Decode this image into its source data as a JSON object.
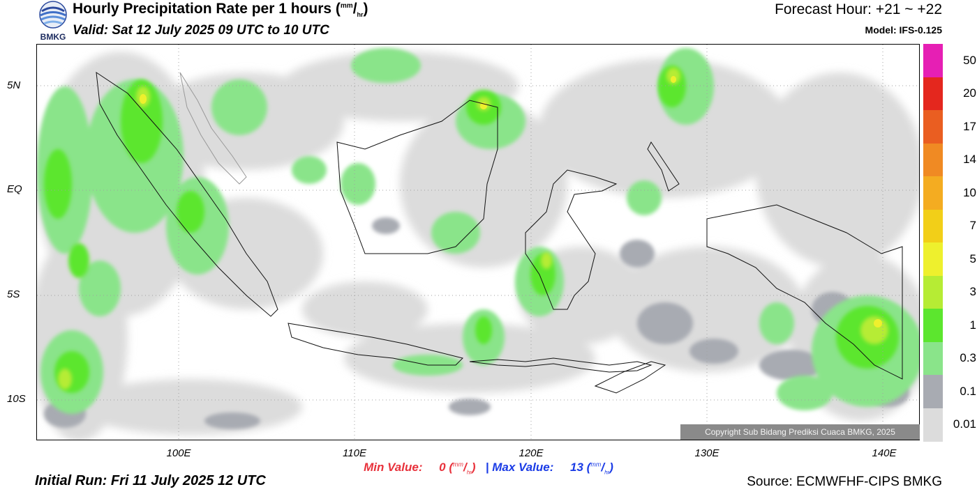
{
  "header": {
    "agency_logo_text": "BMKG",
    "title_main": "Hourly Precipitation Rate per 1 hours (",
    "title_unit_num": "mm",
    "title_unit_sep": "/",
    "title_unit_den": "hr",
    "title_close": ")",
    "valid": "Valid: Sat 12 July 2025 09 UTC to 10 UTC",
    "forecast_hour": "Forecast Hour: +21 ~ +22",
    "model": "Model: IFS-0.125"
  },
  "map": {
    "lat_labels": [
      "5N",
      "EQ",
      "5S",
      "10S"
    ],
    "lon_labels": [
      "100E",
      "110E",
      "120E",
      "130E",
      "140E"
    ],
    "copyright": "Copyright Sub Bidang Prediksi Cuaca BMKG, 2025"
  },
  "colorbar": {
    "labels": [
      "50",
      "20",
      "17",
      "14",
      "10",
      "7",
      "5",
      "3",
      "1",
      "0.3",
      "0.1",
      "0.01"
    ],
    "colors": [
      "#e61fb4",
      "#e4271e",
      "#ea5e21",
      "#f08a23",
      "#f4ac21",
      "#f2cf18",
      "#eef02d",
      "#b6ec34",
      "#5ce62e",
      "#8ae48a",
      "#a8abb2",
      "#dcdcdc"
    ]
  },
  "footer": {
    "min_label": "Min Value:",
    "min_value": "0",
    "max_label": "Max Value:",
    "max_value": "13",
    "unit_num": "mm",
    "unit_den": "hr",
    "separator": "|",
    "initial_run": "Initial Run: Fri 11 July 2025 12 UTC",
    "source": "Source: ECMWFHF-CIPS BMKG"
  }
}
